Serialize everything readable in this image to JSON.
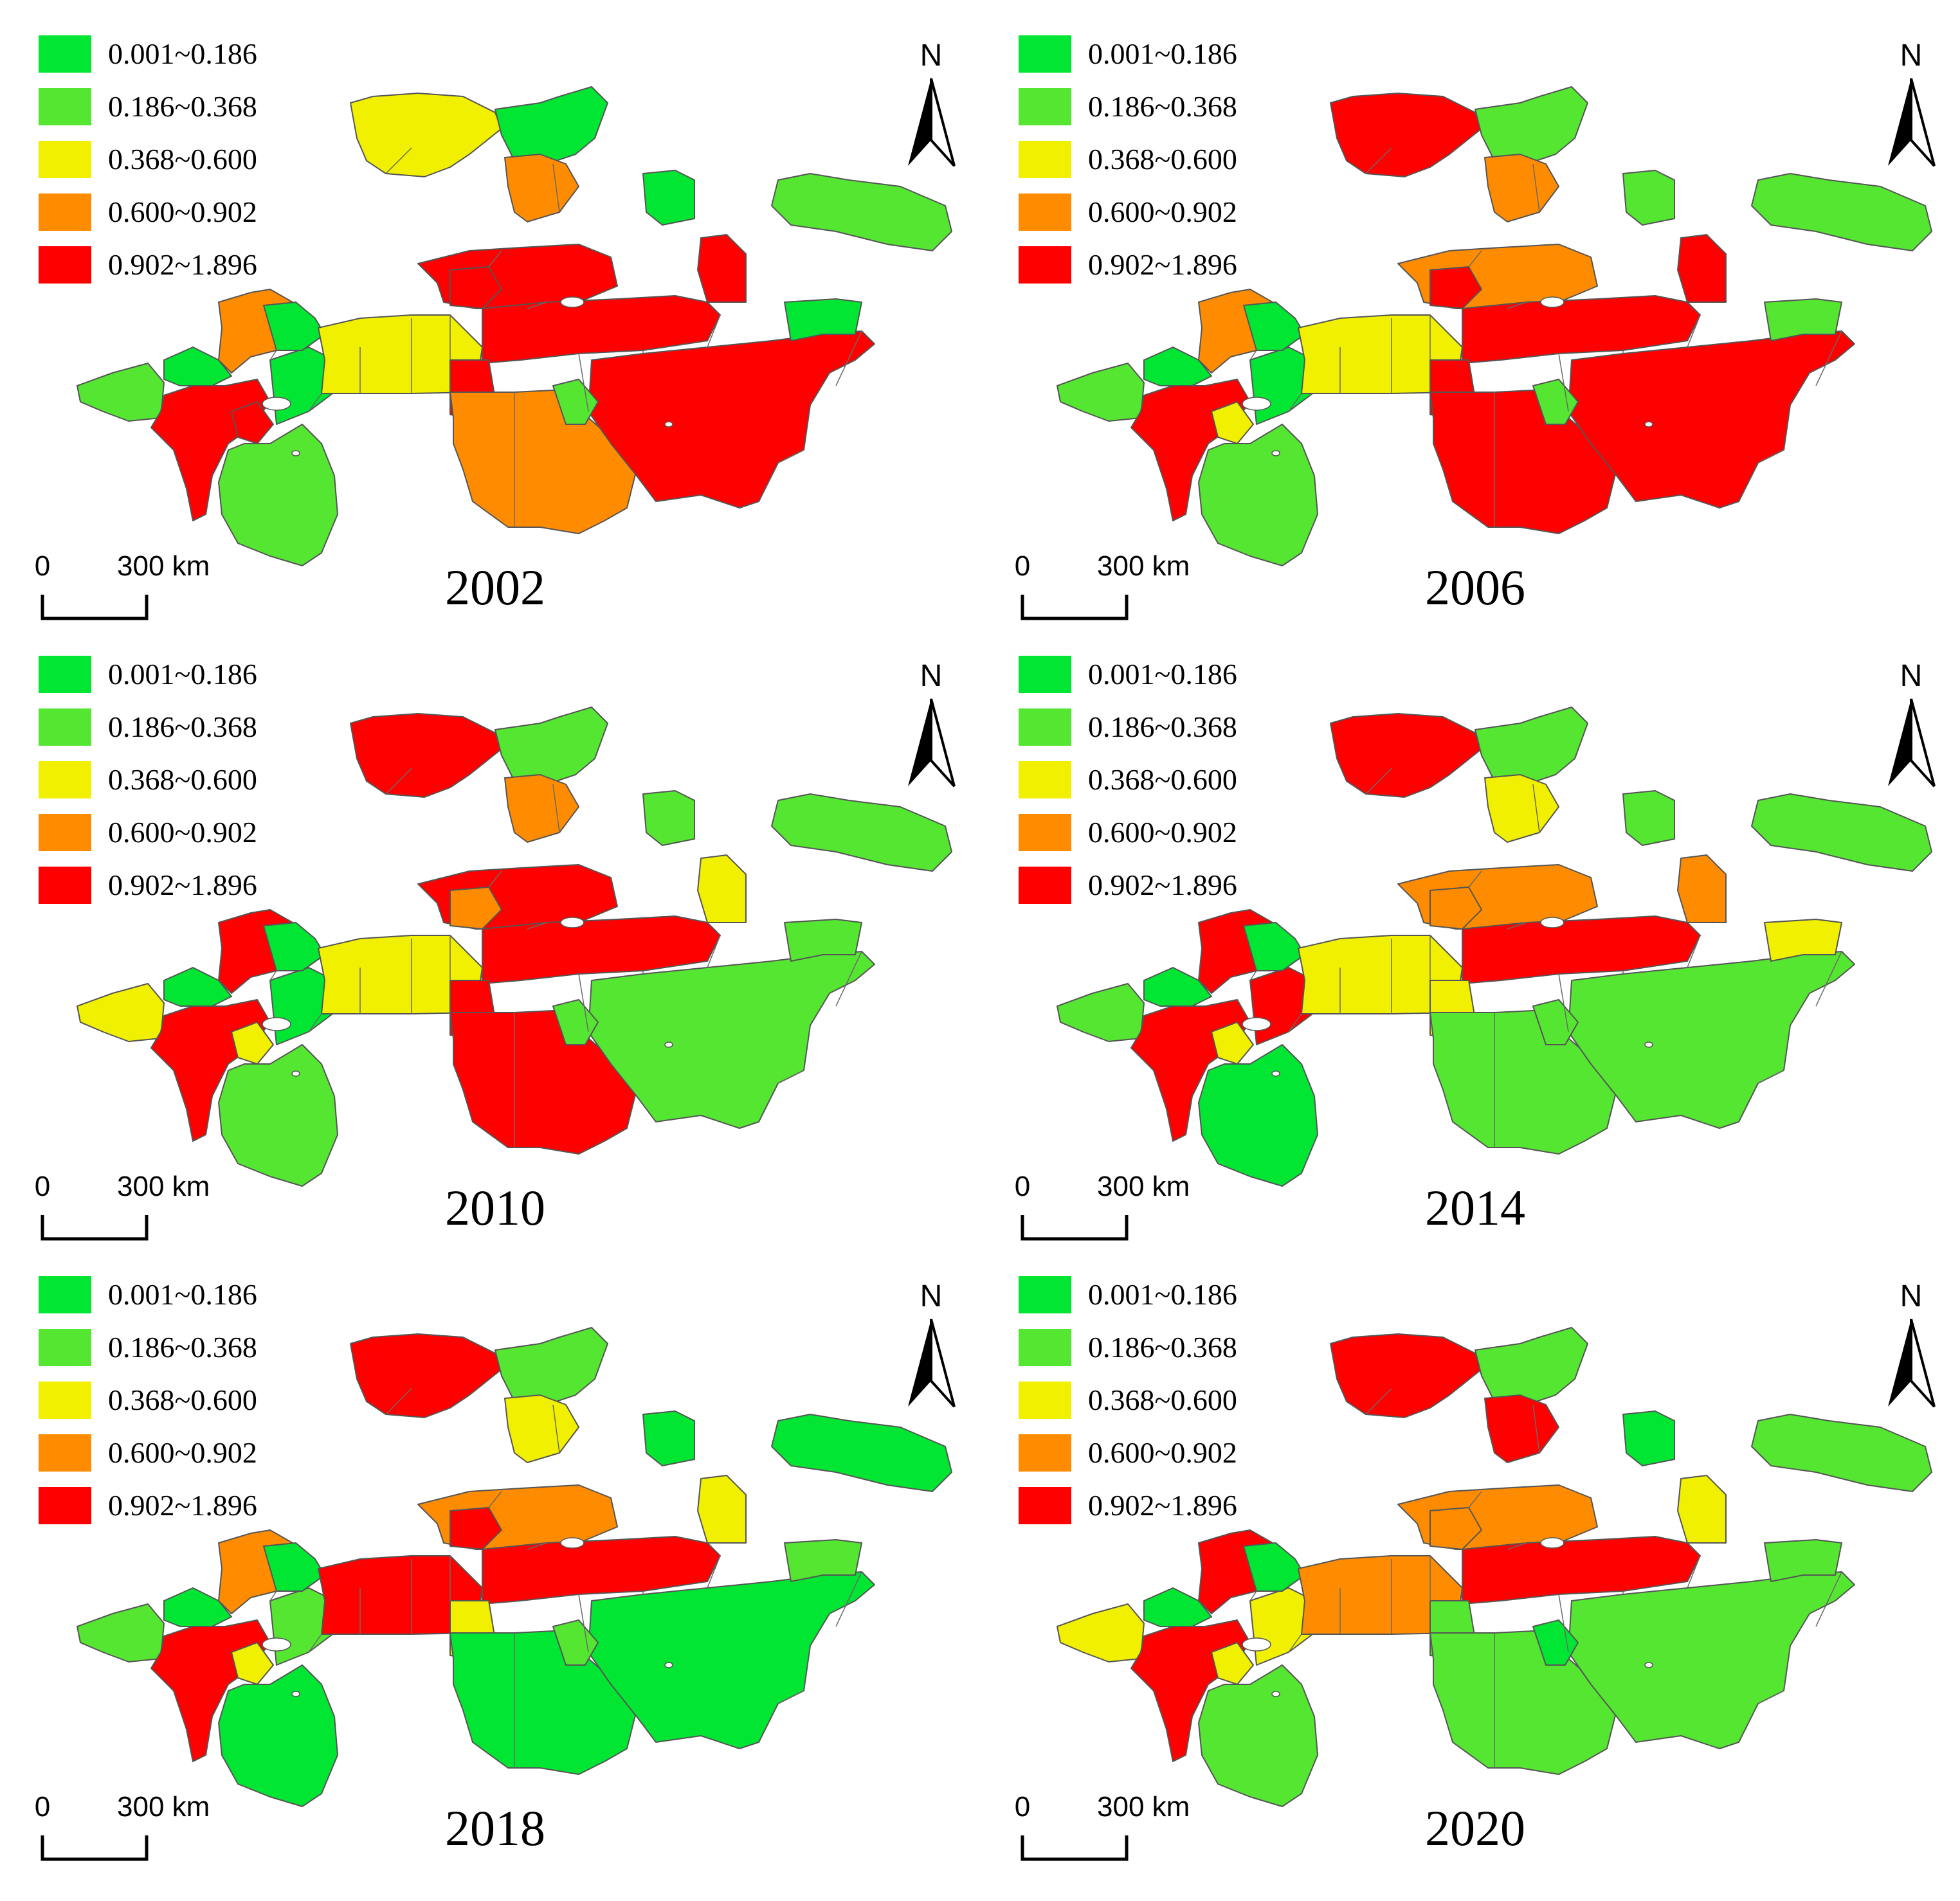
{
  "legend": {
    "classes": [
      {
        "label": "0.001~0.186",
        "color": "#00e632"
      },
      {
        "label": "0.186~0.368",
        "color": "#55e632"
      },
      {
        "label": "0.368~0.600",
        "color": "#f0f000"
      },
      {
        "label": "0.600~0.902",
        "color": "#ff8c00"
      },
      {
        "label": "0.902~1.896",
        "color": "#ff0000"
      }
    ]
  },
  "north_label": "N",
  "scale": {
    "zero_label": "0",
    "distance_label": "300 km"
  },
  "maps": [
    {
      "year": "2002",
      "region_classes": [
        1,
        0,
        4,
        3,
        4,
        0,
        0,
        1,
        2,
        2,
        0,
        3,
        4,
        4,
        4,
        4,
        3,
        4,
        4,
        1,
        0,
        1,
        0
      ]
    },
    {
      "year": "2006",
      "region_classes": [
        1,
        0,
        4,
        3,
        2,
        0,
        0,
        1,
        2,
        4,
        1,
        3,
        3,
        4,
        4,
        4,
        4,
        4,
        4,
        1,
        1,
        1,
        1
      ]
    },
    {
      "year": "2010",
      "region_classes": [
        2,
        0,
        4,
        4,
        2,
        0,
        0,
        1,
        2,
        4,
        1,
        3,
        4,
        3,
        4,
        4,
        4,
        1,
        2,
        1,
        1,
        1,
        1
      ]
    },
    {
      "year": "2014",
      "region_classes": [
        1,
        0,
        4,
        4,
        2,
        4,
        0,
        0,
        2,
        4,
        1,
        2,
        3,
        3,
        4,
        2,
        1,
        1,
        3,
        1,
        1,
        1,
        2
      ]
    },
    {
      "year": "2018",
      "region_classes": [
        1,
        0,
        4,
        3,
        2,
        1,
        0,
        0,
        4,
        4,
        1,
        2,
        3,
        4,
        4,
        2,
        0,
        0,
        2,
        1,
        0,
        0,
        1
      ]
    },
    {
      "year": "2020",
      "region_classes": [
        2,
        0,
        4,
        4,
        2,
        2,
        0,
        1,
        3,
        4,
        1,
        4,
        3,
        3,
        4,
        1,
        1,
        1,
        2,
        0,
        0,
        1,
        1
      ]
    }
  ]
}
